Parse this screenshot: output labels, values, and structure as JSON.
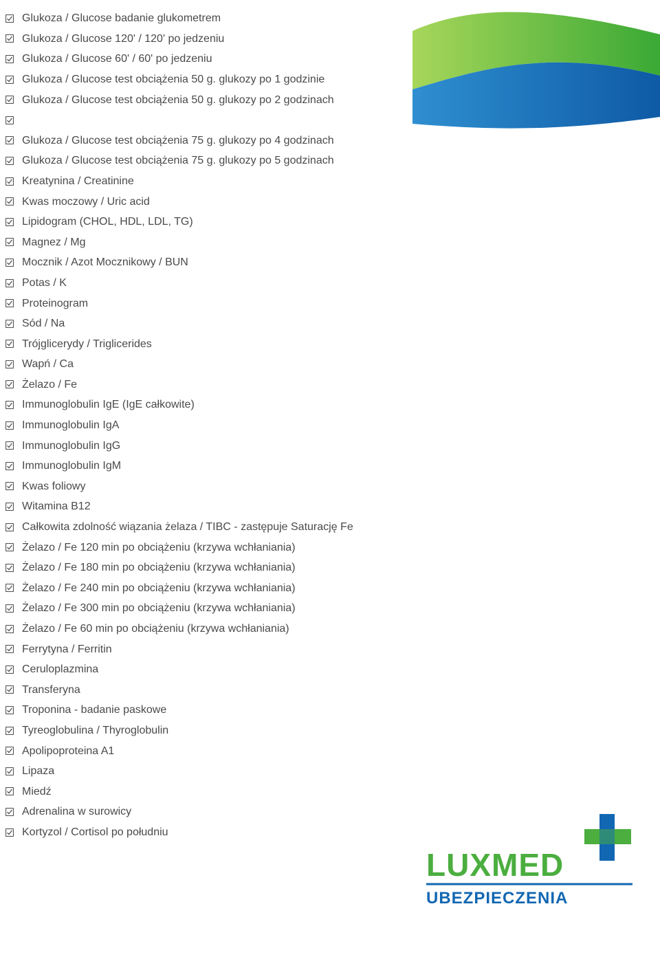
{
  "colors": {
    "text": "#4a4a4a",
    "checkbox_stroke": "#3c3c3c",
    "wave_green_light": "#a7d65a",
    "wave_green_dark": "#3aa935",
    "wave_blue_light": "#2f8fd0",
    "wave_blue_dark": "#0e5aa5",
    "logo_green": "#4bae3f",
    "logo_blue": "#1267b2",
    "logo_cross_blue": "#1267b2",
    "logo_cross_green": "#4bae3f"
  },
  "typography": {
    "item_fontsize": 16,
    "logo_main_fontsize": 46,
    "logo_sub_fontsize": 24
  },
  "items": [
    "Glukoza / Glucose badanie glukometrem",
    "Glukoza / Glucose 120' / 120' po jedzeniu",
    "Glukoza / Glucose 60' / 60' po jedzeniu",
    "Glukoza / Glucose test obciążenia 50 g. glukozy po 1 godzinie",
    "Glukoza / Glucose test obciążenia 50 g. glukozy po 2 godzinach",
    "",
    "Glukoza / Glucose test obciążenia 75 g. glukozy po 4 godzinach",
    "Glukoza / Glucose test obciążenia 75 g. glukozy po 5 godzinach",
    "Kreatynina / Creatinine",
    "Kwas moczowy / Uric acid",
    "Lipidogram (CHOL, HDL, LDL, TG)",
    "Magnez / Mg",
    "Mocznik / Azot Mocznikowy / BUN",
    "Potas / K",
    "Proteinogram",
    "Sód / Na",
    "Trójglicerydy / Triglicerides",
    "Wapń / Ca",
    "Żelazo / Fe",
    "Immunoglobulin IgE (IgE całkowite)",
    "Immunoglobulin IgA",
    "Immunoglobulin IgG",
    "Immunoglobulin IgM",
    "Kwas foliowy",
    "Witamina B12",
    "Całkowita zdolność wiązania żelaza / TIBC - zastępuje Saturację Fe",
    "Żelazo / Fe 120 min po obciążeniu (krzywa wchłaniania)",
    "Żelazo / Fe 180 min po obciążeniu (krzywa wchłaniania)",
    "Żelazo / Fe 240 min po obciążeniu (krzywa wchłaniania)",
    "Żelazo / Fe 300 min po obciążeniu (krzywa wchłaniania)",
    "Żelazo / Fe 60 min po obciążeniu (krzywa wchłaniania)",
    "Ferrytyna / Ferritin",
    "Ceruloplazmina",
    "Transferyna",
    "Troponina - badanie paskowe",
    "Tyreoglobulina / Thyroglobulin",
    "Apolipoproteina A1",
    "Lipaza",
    "Miedź",
    "Adrenalina w surowicy",
    "Kortyzol / Cortisol po południu"
  ],
  "logo": {
    "main_text": "LUXMED",
    "sub_text": "UBEZPIECZENIA"
  }
}
